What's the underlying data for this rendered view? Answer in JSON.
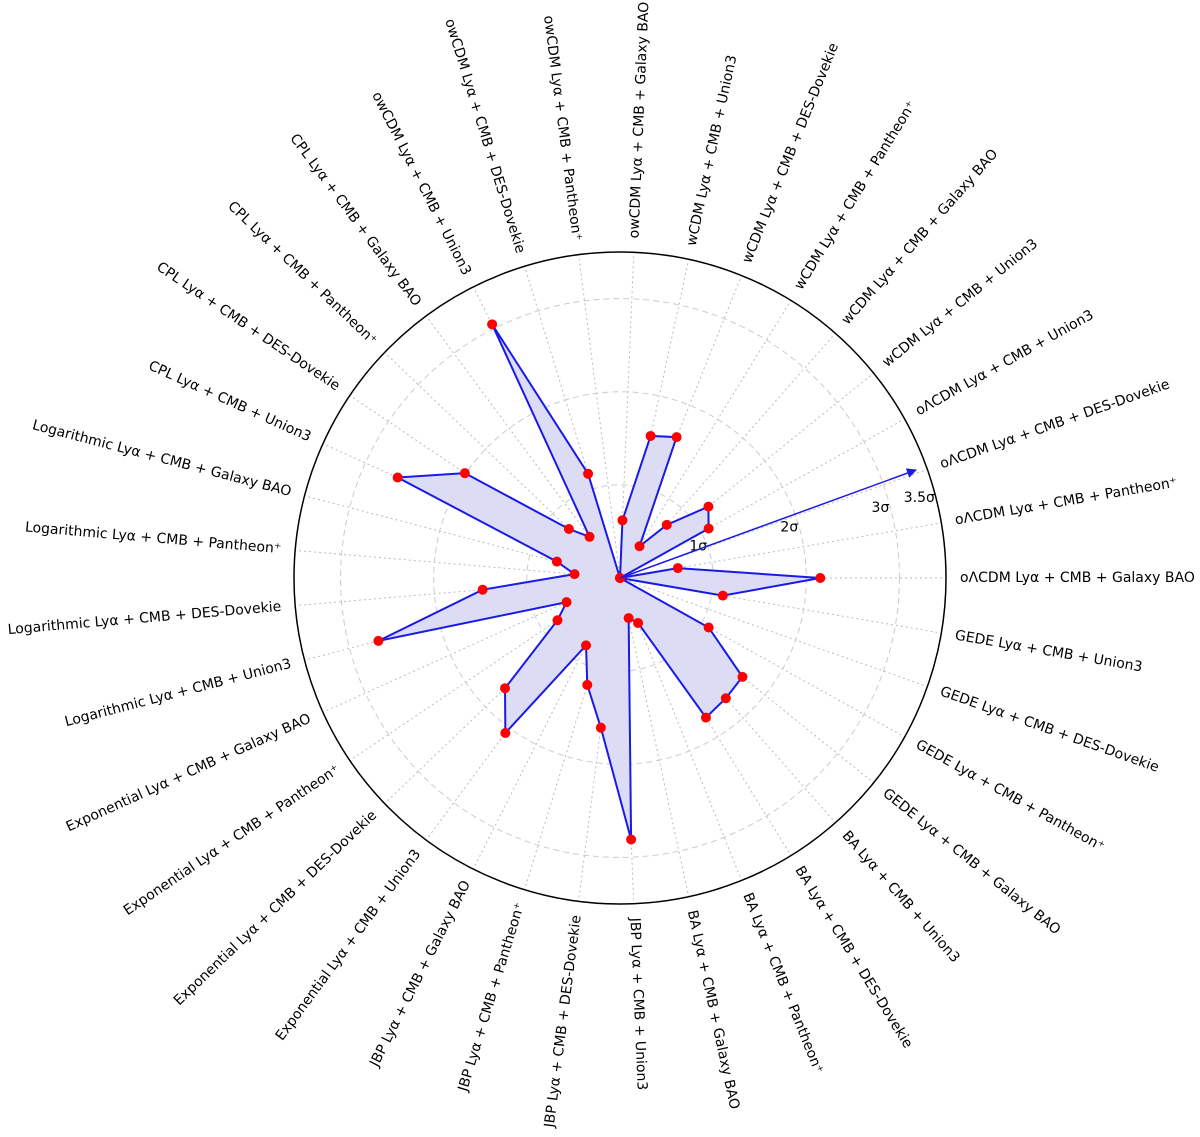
{
  "chart_data": {
    "type": "radar",
    "categories": [
      "oΛCDM Lyα + CMB + Galaxy BAO",
      "oΛCDM Lyα + CMB + Pantheon⁺",
      "oΛCDM Lyα + CMB + DES-Dovekie",
      "oΛCDM Lyα + CMB + Union3",
      "wCDM Lyα + CMB + Union3",
      "wCDM Lyα + CMB + Galaxy BAO",
      "wCDM Lyα + CMB + Pantheon⁺",
      "wCDM Lyα + CMB + DES-Dovekie",
      "wCDM Lyα + CMB + Union3",
      "owCDM Lyα + CMB + Galaxy BAO",
      "owCDM Lyα + CMB + Pantheon⁺",
      "owCDM Lyα + CMB + DES-Dovekie",
      "owCDM Lyα + CMB + Union3",
      "CPL Lyα + CMB + Galaxy BAO",
      "CPL Lyα + CMB + Pantheon⁺",
      "CPL Lyα + CMB + DES-Dovekie",
      "CPL Lyα + CMB + Union3",
      "Logarithmic Lyα + CMB + Galaxy BAO",
      "Logarithmic Lyα + CMB + Pantheon⁺",
      "Logarithmic Lyα + CMB + DES-Dovekie",
      "Logarithmic Lyα + CMB + Union3",
      "Exponential Lyα + CMB + Galaxy BAO",
      "Exponential Lyα + CMB + Pantheon⁺",
      "Exponential Lyα + CMB + DES-Dovekie",
      "Exponential Lyα + CMB + Union3",
      "JBP Lyα + CMB + Galaxy BAO",
      "JBP Lyα + CMB + Pantheon⁺",
      "JBP Lyα + CMB + DES-Dovekie",
      "JBP Lyα + CMB + Union3",
      "BA Lyα + CMB + Galaxy BAO",
      "BA Lyα + CMB + Pantheon⁺",
      "BA Lyα + CMB + DES-Dovekie",
      "BA Lyα + CMB + Union3",
      "GEDE Lyα + CMB + Galaxy BAO",
      "GEDE Lyα + CMB + Pantheon⁺",
      "GEDE Lyα + CMB + DES-Dovekie",
      "GEDE Lyα + CMB + Union3"
    ],
    "values": [
      2.15,
      0.63,
      0,
      1.09,
      1.22,
      0.76,
      0.4,
      1.63,
      1.56,
      0.62,
      0,
      1.17,
      3.05,
      0.55,
      0.76,
      2.01,
      2.62,
      0.7,
      0.49,
      1.48,
      2.68,
      0.63,
      0.81,
      1.71,
      2.07,
      0.81,
      1.2,
      1.62,
      2.81,
      0.44,
      0.52,
      1.76,
      1.72,
      1.69,
      1.09,
      0,
      1.12
    ],
    "color": "#1a1ae6",
    "fill": "#dcdcf5",
    "marker_color": "#ff0000",
    "ylim": [
      0,
      3.5
    ],
    "yticks": [
      {
        "value": 1,
        "label": "1σ"
      },
      {
        "value": 2,
        "label": "2σ"
      },
      {
        "value": 3,
        "label": "3σ"
      },
      {
        "value": 3.5,
        "label": "3.5σ"
      }
    ],
    "grid": true
  }
}
